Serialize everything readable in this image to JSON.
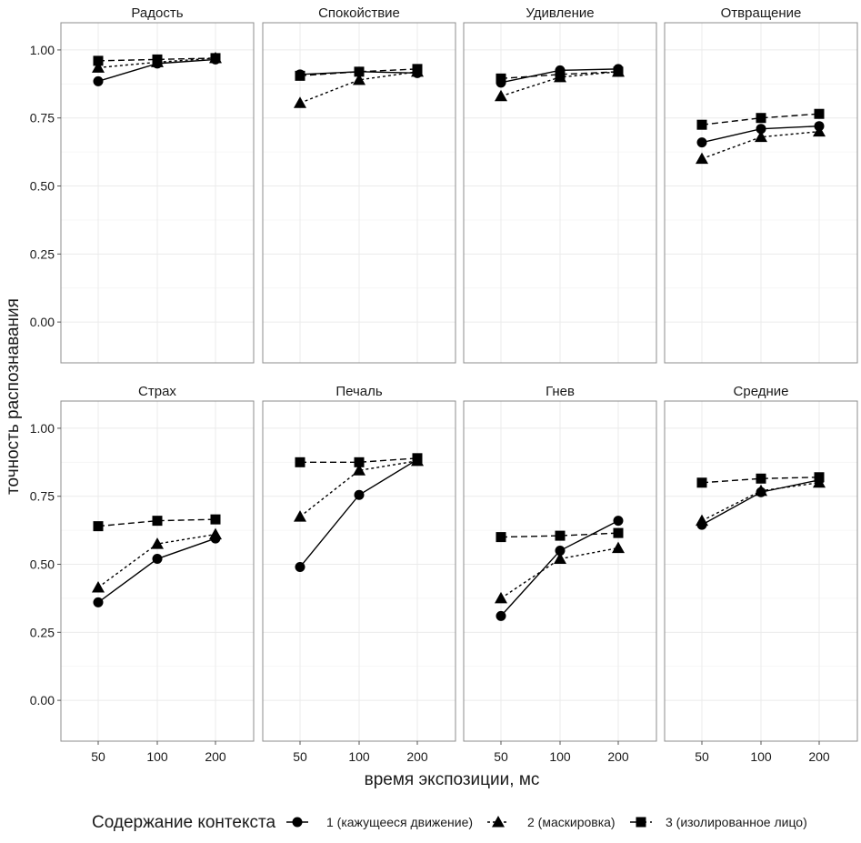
{
  "figure": {
    "ylabel": "точность распознавания",
    "xlabel": "время экспозиции, мс",
    "legend": {
      "title": "Содержание контекста",
      "position": "bottom",
      "items": [
        {
          "label": "1 (кажущееся движение)",
          "marker": "circle",
          "line": "solid"
        },
        {
          "label": "2 (маскировка)",
          "marker": "triangle",
          "line": "dotted"
        },
        {
          "label": "3 (изолированное лицо)",
          "marker": "square",
          "line": "dashed"
        }
      ]
    },
    "x_ticks": [
      "50",
      "100",
      "200"
    ],
    "y_ticks": [
      "0.00",
      "0.25",
      "0.50",
      "0.75",
      "1.00"
    ],
    "grid": true,
    "colors": {
      "line": "#000000",
      "panel_border": "#8c8c8c",
      "grid": "#ebebeb"
    }
  },
  "chart_data": [
    {
      "type": "line",
      "title": "Радость",
      "x": [
        "50",
        "100",
        "200"
      ],
      "ylim": [
        -0.15,
        1.1
      ],
      "series": [
        {
          "name": "1 (кажущееся движение)",
          "values": [
            0.885,
            0.95,
            0.965
          ]
        },
        {
          "name": "2 (маскировка)",
          "values": [
            0.935,
            0.955,
            0.97
          ]
        },
        {
          "name": "3 (изолированное лицо)",
          "values": [
            0.96,
            0.965,
            0.97
          ]
        }
      ]
    },
    {
      "type": "line",
      "title": "Спокойствие",
      "x": [
        "50",
        "100",
        "200"
      ],
      "ylim": [
        -0.15,
        1.1
      ],
      "series": [
        {
          "name": "1 (кажущееся движение)",
          "values": [
            0.91,
            0.92,
            0.915
          ]
        },
        {
          "name": "2 (маскировка)",
          "values": [
            0.805,
            0.89,
            0.92
          ]
        },
        {
          "name": "3 (изолированное лицо)",
          "values": [
            0.905,
            0.92,
            0.93
          ]
        }
      ]
    },
    {
      "type": "line",
      "title": "Удивление",
      "x": [
        "50",
        "100",
        "200"
      ],
      "ylim": [
        -0.15,
        1.1
      ],
      "series": [
        {
          "name": "1 (кажущееся движение)",
          "values": [
            0.88,
            0.925,
            0.93
          ]
        },
        {
          "name": "2 (маскировка)",
          "values": [
            0.83,
            0.9,
            0.92
          ]
        },
        {
          "name": "3 (изолированное лицо)",
          "values": [
            0.895,
            0.91,
            0.92
          ]
        }
      ]
    },
    {
      "type": "line",
      "title": "Отвращение",
      "x": [
        "50",
        "100",
        "200"
      ],
      "ylim": [
        -0.15,
        1.1
      ],
      "series": [
        {
          "name": "1 (кажущееся движение)",
          "values": [
            0.66,
            0.71,
            0.72
          ]
        },
        {
          "name": "2 (маскировка)",
          "values": [
            0.6,
            0.68,
            0.7
          ]
        },
        {
          "name": "3 (изолированное лицо)",
          "values": [
            0.725,
            0.75,
            0.765
          ]
        }
      ]
    },
    {
      "type": "line",
      "title": "Страх",
      "x": [
        "50",
        "100",
        "200"
      ],
      "ylim": [
        -0.15,
        1.1
      ],
      "series": [
        {
          "name": "1 (кажущееся движение)",
          "values": [
            0.36,
            0.52,
            0.595
          ]
        },
        {
          "name": "2 (маскировка)",
          "values": [
            0.415,
            0.575,
            0.61
          ]
        },
        {
          "name": "3 (изолированное лицо)",
          "values": [
            0.64,
            0.66,
            0.665
          ]
        }
      ]
    },
    {
      "type": "line",
      "title": "Печаль",
      "x": [
        "50",
        "100",
        "200"
      ],
      "ylim": [
        -0.15,
        1.1
      ],
      "series": [
        {
          "name": "1 (кажущееся движение)",
          "values": [
            0.49,
            0.755,
            0.885
          ]
        },
        {
          "name": "2 (маскировка)",
          "values": [
            0.675,
            0.845,
            0.88
          ]
        },
        {
          "name": "3 (изолированное лицо)",
          "values": [
            0.875,
            0.875,
            0.89
          ]
        }
      ]
    },
    {
      "type": "line",
      "title": "Гнев",
      "x": [
        "50",
        "100",
        "200"
      ],
      "ylim": [
        -0.15,
        1.1
      ],
      "series": [
        {
          "name": "1 (кажущееся движение)",
          "values": [
            0.31,
            0.55,
            0.66
          ]
        },
        {
          "name": "2 (маскировка)",
          "values": [
            0.375,
            0.52,
            0.56
          ]
        },
        {
          "name": "3 (изолированное лицо)",
          "values": [
            0.6,
            0.605,
            0.615
          ]
        }
      ]
    },
    {
      "type": "line",
      "title": "Средние",
      "x": [
        "50",
        "100",
        "200"
      ],
      "ylim": [
        -0.15,
        1.1
      ],
      "series": [
        {
          "name": "1 (кажущееся движение)",
          "values": [
            0.645,
            0.765,
            0.81
          ]
        },
        {
          "name": "2 (маскировка)",
          "values": [
            0.66,
            0.77,
            0.8
          ]
        },
        {
          "name": "3 (изолированное лицо)",
          "values": [
            0.8,
            0.815,
            0.82
          ]
        }
      ]
    }
  ]
}
